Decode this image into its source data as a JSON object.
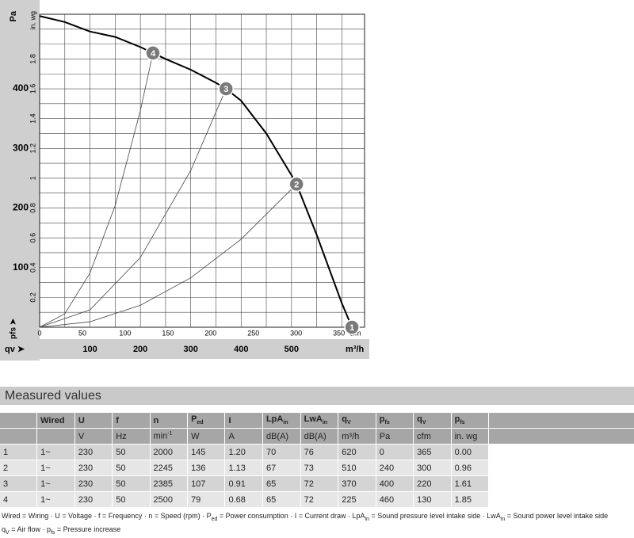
{
  "chart_data": {
    "type": "line",
    "y_unit": "Pa",
    "y2_unit": "in. wg",
    "x_unit": "m³/h",
    "x2_unit": "cfm",
    "x_symbol": "qv ➤",
    "y_symbol": "pfs ➤",
    "xlim": [
      0,
      645
    ],
    "xticks": [
      100,
      200,
      300,
      400,
      500
    ],
    "x2lim": [
      0,
      380
    ],
    "x2ticks": [
      0,
      50,
      100,
      150,
      200,
      250,
      300,
      350
    ],
    "ylim": [
      0,
      525
    ],
    "yticks": [
      100,
      200,
      300,
      400
    ],
    "y2lim": [
      0,
      2.1
    ],
    "y2ticks": [
      0.2,
      0.4,
      0.6,
      0.8,
      1,
      1.2,
      1.4,
      1.6,
      1.8
    ],
    "grid": true,
    "xgrid": [
      0,
      50,
      100,
      150,
      200,
      250,
      300,
      350,
      400,
      450,
      500,
      550,
      600
    ],
    "y2grid": [
      0.1,
      0.2,
      0.3,
      0.4,
      0.5,
      0.6,
      0.7,
      0.8,
      0.9,
      1.0,
      1.1,
      1.2,
      1.3,
      1.4,
      1.5,
      1.6,
      1.7,
      1.8,
      1.9,
      2.0
    ],
    "series": [
      {
        "color": "#000000",
        "x": [
          0,
          50,
          100,
          150,
          200,
          225,
          250,
          300,
          350,
          370,
          400,
          450,
          500,
          510,
          550,
          600,
          620
        ],
        "values": [
          522,
          512,
          496,
          487,
          470,
          460,
          450,
          432,
          410,
          400,
          380,
          325,
          255,
          240,
          155,
          40,
          0
        ]
      },
      {
        "color": "#444444",
        "x": [
          0,
          50,
          100,
          150,
          200,
          225
        ],
        "values": [
          0,
          22.7,
          90.9,
          204.4,
          363.5,
          460
        ]
      },
      {
        "color": "#444444",
        "x": [
          0,
          100,
          200,
          300,
          370
        ],
        "values": [
          0,
          29.2,
          116.9,
          263,
          400
        ]
      },
      {
        "color": "#444444",
        "x": [
          0,
          100,
          200,
          300,
          400,
          510
        ],
        "values": [
          0,
          9.2,
          36.9,
          83,
          147.6,
          240
        ]
      }
    ],
    "points": {
      "labels": [
        "1",
        "2",
        "3",
        "4"
      ],
      "x": [
        620,
        510,
        370,
        225
      ],
      "values": [
        0,
        240,
        400,
        460
      ]
    }
  },
  "table": {
    "title": "Measured values",
    "columns": [
      null,
      {
        "text": "Wired"
      },
      {
        "text": "U"
      },
      {
        "text": "f"
      },
      {
        "text": "n"
      },
      {
        "text": "P",
        "sub": "ed"
      },
      {
        "text": "I"
      },
      {
        "text": "LpA",
        "sub": "in"
      },
      {
        "text": "LwA",
        "sub": "in"
      },
      {
        "text": "q",
        "sub": "V"
      },
      {
        "text": "p",
        "sub": "fs"
      },
      {
        "text": "q",
        "sub": "V"
      },
      {
        "text": "p",
        "sub": "fs"
      }
    ],
    "units": [
      null,
      null,
      {
        "text": "V"
      },
      {
        "text": "Hz"
      },
      {
        "text": "min",
        "sup": "-1"
      },
      {
        "text": "W"
      },
      {
        "text": "A"
      },
      {
        "text": "dB(A)"
      },
      {
        "text": "dB(A)"
      },
      {
        "text": "m³/h"
      },
      {
        "text": "Pa"
      },
      {
        "text": "cfm"
      },
      {
        "text": "in. wg"
      }
    ],
    "rows": [
      [
        "1",
        "1~",
        "230",
        "50",
        "2000",
        "145",
        "1.20",
        "70",
        "76",
        "620",
        "0",
        "365",
        "0.00"
      ],
      [
        "2",
        "1~",
        "230",
        "50",
        "2245",
        "136",
        "1.13",
        "67",
        "73",
        "510",
        "240",
        "300",
        "0.96"
      ],
      [
        "3",
        "1~",
        "230",
        "50",
        "2385",
        "107",
        "0.91",
        "65",
        "72",
        "370",
        "400",
        "220",
        "1.61"
      ],
      [
        "4",
        "1~",
        "230",
        "50",
        "2500",
        "79",
        "0.68",
        "65",
        "72",
        "225",
        "460",
        "130",
        "1.85"
      ]
    ]
  },
  "footnotes": [
    [
      {
        "text": "Wired = Wiring · U = Voltage · f = Frequency · n = Speed (rpm) · P"
      },
      {
        "sub": "ed"
      },
      {
        "text": " = Power consumption · I = Current draw · LpA"
      },
      {
        "sub": "in"
      },
      {
        "text": " = Sound pressure level intake side · LwA"
      },
      {
        "sub": "in"
      },
      {
        "text": " = Sound power level intake side"
      }
    ],
    [
      {
        "text": "q"
      },
      {
        "sub": "V"
      },
      {
        "text": " = Air flow · p"
      },
      {
        "sub": "fs"
      },
      {
        "text": " = Pressure increase"
      }
    ]
  ]
}
